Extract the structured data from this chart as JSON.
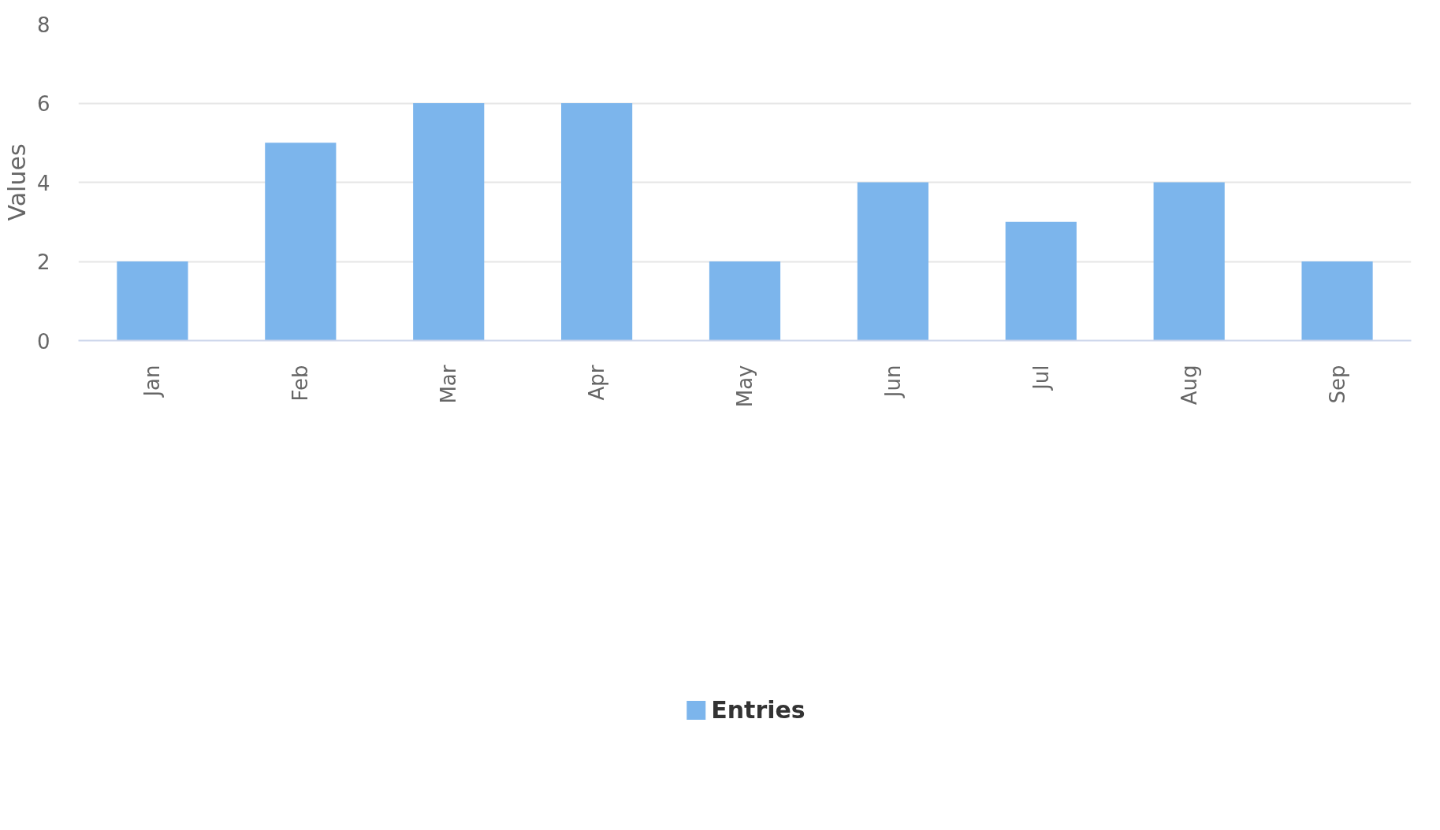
{
  "chart_data": {
    "type": "bar",
    "ylabel": "Values",
    "categories": [
      "Jan",
      "Feb",
      "Mar",
      "Apr",
      "May",
      "Jun",
      "Jul",
      "Aug",
      "Sep"
    ],
    "series": [
      {
        "name": "Entries",
        "color": "#7cb5ec",
        "values": [
          2,
          5,
          6,
          6,
          2,
          4,
          3,
          4,
          2
        ]
      }
    ],
    "ylim": [
      0,
      8
    ],
    "yticks": [
      0,
      2,
      4,
      6,
      8
    ],
    "grid": "y",
    "legend": "bottom"
  }
}
